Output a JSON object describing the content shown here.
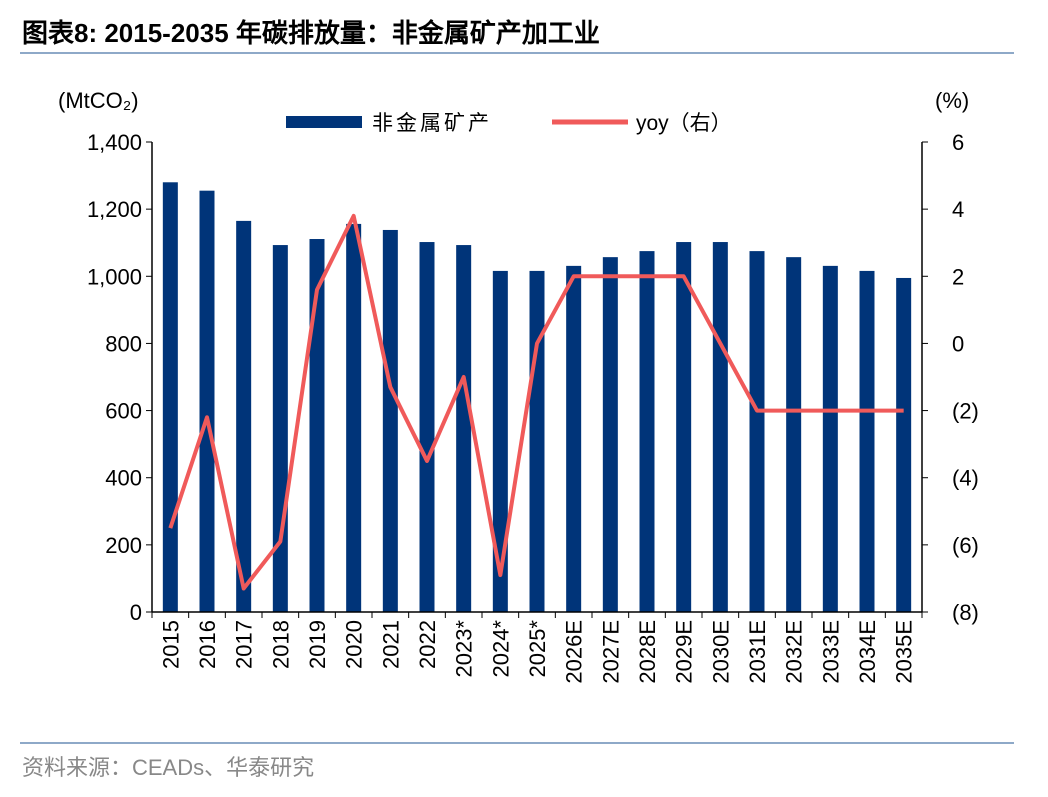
{
  "title": "图表8:   2015-2035 年碳排放量：非金属矿产加工业",
  "source": "资料来源：CEADs、华泰研究",
  "colors": {
    "bar": "#003479",
    "line": "#F05A5A",
    "rule": "#8EA9C8"
  },
  "chart_data": {
    "type": "bar+line",
    "ylabel_left": "(MtCO₂)",
    "ylabel_right": "(%)",
    "ylim_left": [
      0,
      1400
    ],
    "yticks_left": [
      0,
      200,
      400,
      600,
      800,
      1000,
      1200,
      1400
    ],
    "yticklabels_left": [
      "0",
      "200",
      "400",
      "600",
      "800",
      "1,000",
      "1,200",
      "1,400"
    ],
    "ylim_right": [
      -8,
      6
    ],
    "yticks_right": [
      -8,
      -6,
      -4,
      -2,
      0,
      2,
      4,
      6
    ],
    "yticklabels_right": [
      "(8)",
      "(6)",
      "(4)",
      "(2)",
      "0",
      "2",
      "4",
      "6"
    ],
    "legend": [
      "非金属矿产",
      "yoy（右）"
    ],
    "legend_placement": "top",
    "grid": false,
    "categories": [
      "2015",
      "2016",
      "2017",
      "2018",
      "2019",
      "2020",
      "2021",
      "2022",
      "2023*",
      "2024*",
      "2025*",
      "2026E",
      "2027E",
      "2028E",
      "2029E",
      "2030E",
      "2031E",
      "2032E",
      "2033E",
      "2034E",
      "2035E"
    ],
    "series": [
      {
        "name": "非金属矿产",
        "type": "bar",
        "axis": "left",
        "values": [
          1280,
          1255,
          1165,
          1093,
          1111,
          1156,
          1138,
          1102,
          1093,
          1016,
          1016,
          1031,
          1057,
          1075,
          1102,
          1102,
          1075,
          1057,
          1031,
          1016,
          995
        ]
      },
      {
        "name": "yoy（右）",
        "type": "line",
        "axis": "right",
        "values": [
          -5.5,
          -2.2,
          -7.3,
          -5.9,
          1.6,
          3.8,
          -1.3,
          -3.5,
          -1.0,
          -6.9,
          0.0,
          2.0,
          2.0,
          2.0,
          2.0,
          0.0,
          -2.0,
          -2.0,
          -2.0,
          -2.0,
          -2.0
        ]
      }
    ]
  }
}
